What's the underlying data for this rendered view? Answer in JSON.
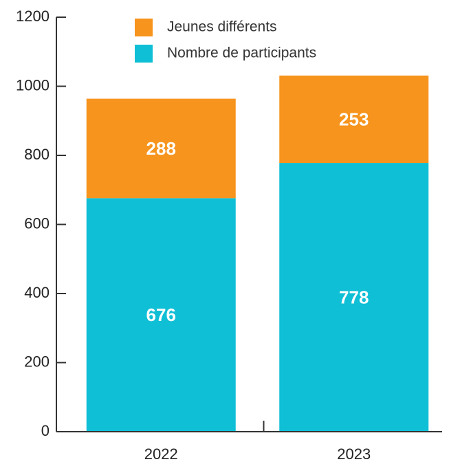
{
  "chart_data": {
    "type": "stacked_bar",
    "categories": [
      "2022",
      "2023"
    ],
    "series": [
      {
        "name": "Nombre de participants",
        "color": "#0fbfd6",
        "values": [
          676,
          778
        ]
      },
      {
        "name": "Jeunes différents",
        "color": "#f7941d",
        "values": [
          288,
          253
        ]
      }
    ],
    "ylim": [
      0,
      1200
    ],
    "yticks": [
      0,
      200,
      400,
      600,
      800,
      1000,
      1200
    ]
  }
}
